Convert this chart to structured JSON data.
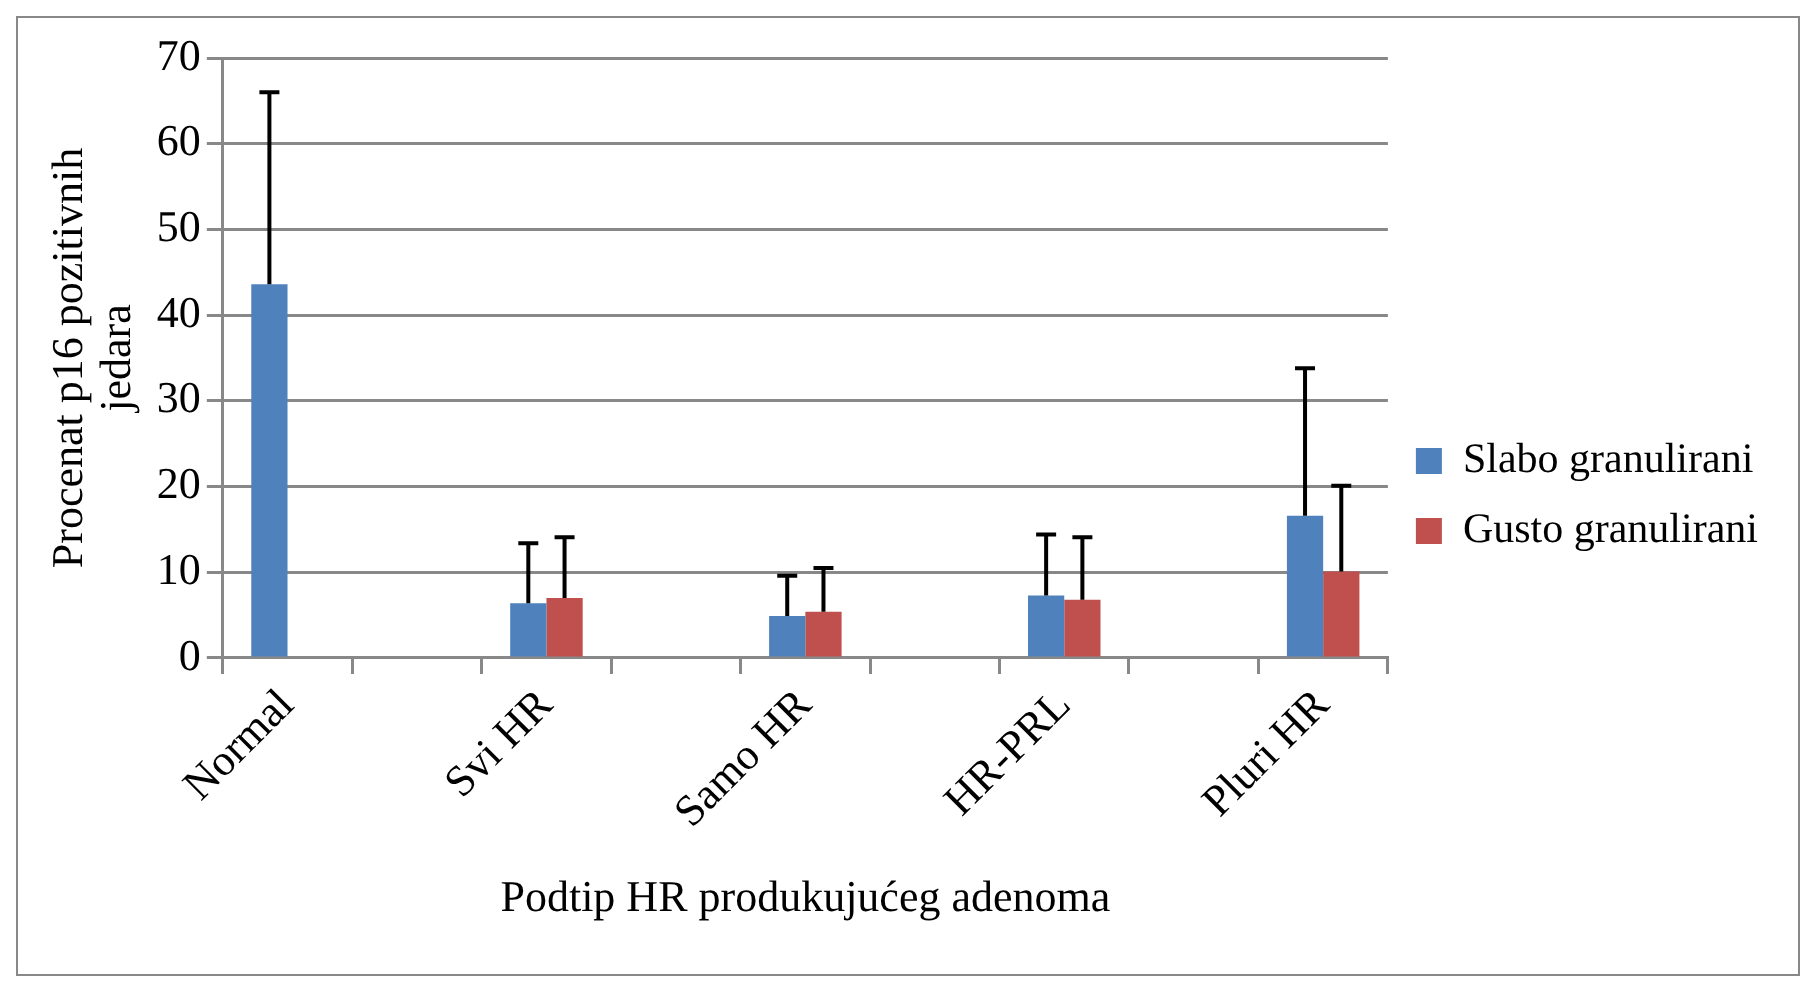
{
  "chart_data": {
    "type": "bar",
    "xlabel": "Podtip HR produkujućeg adenoma",
    "ylabel": "Procenat p16 pozitivnih jedara",
    "categories": [
      "Normal",
      null,
      "Svi HR",
      null,
      "Samo HR",
      null,
      "HR-PRL",
      null,
      "Pluri HR"
    ],
    "series": [
      {
        "name": "Slabo granulirani",
        "color": "#4f81bd",
        "values": [
          43.6,
          null,
          6.4,
          null,
          4.9,
          null,
          7.3,
          null,
          16.6
        ],
        "errors": [
          [
            43.6,
            66
          ],
          null,
          [
            6.4,
            13.4
          ],
          null,
          [
            4.9,
            9.6
          ],
          null,
          [
            7.3,
            14.4
          ],
          null,
          [
            16.6,
            33.8
          ]
        ]
      },
      {
        "name": "Gusto granulirani",
        "color": "#c0504d",
        "values": [
          null,
          null,
          7.0,
          null,
          5.4,
          null,
          6.8,
          null,
          10.1
        ],
        "errors": [
          null,
          null,
          [
            7.0,
            14.1
          ],
          null,
          [
            5.4,
            10.5
          ],
          null,
          [
            6.8,
            14.1
          ],
          null,
          [
            10.1,
            20.1
          ]
        ]
      }
    ],
    "ylim": [
      0,
      70
    ],
    "yticks": [
      0,
      10,
      20,
      30,
      40,
      50,
      60,
      70
    ],
    "grid": "y",
    "legend": "right"
  }
}
